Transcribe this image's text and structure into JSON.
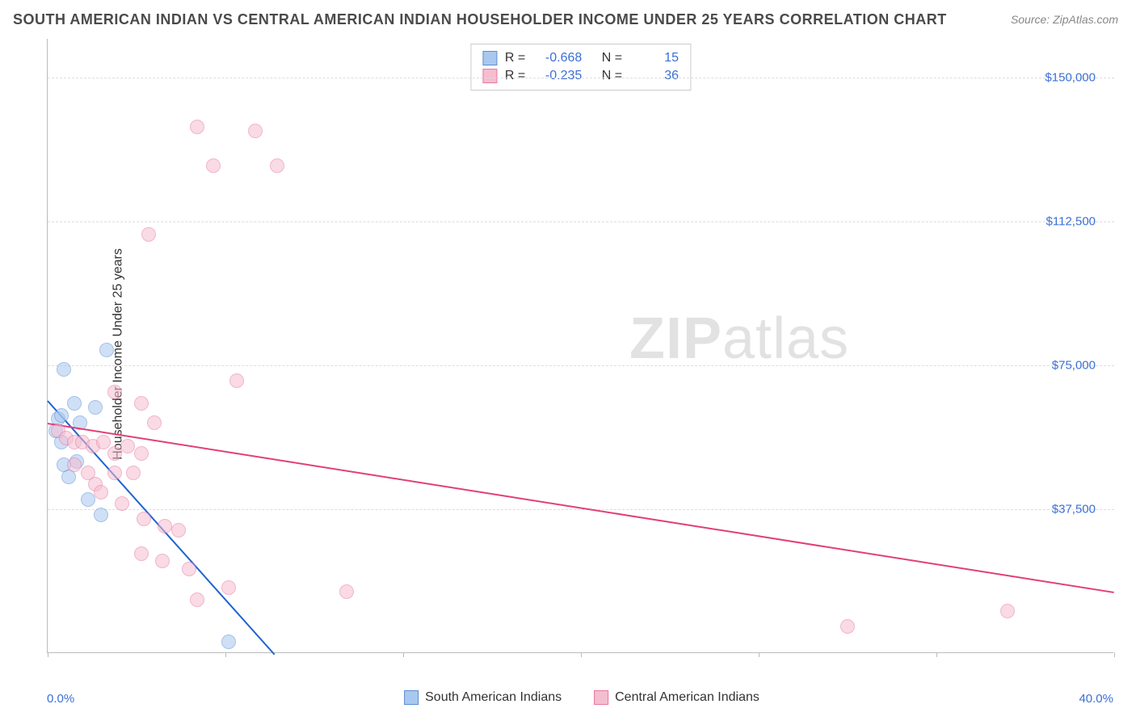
{
  "title": "SOUTH AMERICAN INDIAN VS CENTRAL AMERICAN INDIAN HOUSEHOLDER INCOME UNDER 25 YEARS CORRELATION CHART",
  "source_label": "Source:",
  "source_value": "ZipAtlas.com",
  "y_axis_label": "Householder Income Under 25 years",
  "watermark_zip": "ZIP",
  "watermark_atlas": "atlas",
  "chart": {
    "type": "scatter",
    "background_color": "#ffffff",
    "grid_color": "#dddddd",
    "axis_color": "#bbbbbb",
    "label_color": "#3b6fd6",
    "text_color": "#333333",
    "xlim": [
      0,
      40
    ],
    "ylim": [
      0,
      160000
    ],
    "x_ticks": [
      0,
      6.67,
      13.33,
      20,
      26.67,
      33.33,
      40
    ],
    "x_min_label": "0.0%",
    "x_max_label": "40.0%",
    "y_gridlines": [
      {
        "value": 37500,
        "label": "$37,500"
      },
      {
        "value": 75000,
        "label": "$75,000"
      },
      {
        "value": 112500,
        "label": "$112,500"
      },
      {
        "value": 150000,
        "label": "$150,000"
      }
    ],
    "marker_radius": 9,
    "marker_opacity": 0.55,
    "trend_width": 2,
    "series": [
      {
        "name": "South American Indians",
        "fill": "#a9c8ef",
        "stroke": "#5a8fd6",
        "trend_color": "#1e63d0",
        "R": "-0.668",
        "N": "15",
        "trend": {
          "x1": 0,
          "y1": 66000,
          "x2": 8.5,
          "y2": 0
        },
        "points": [
          {
            "x": 0.4,
            "y": 61000
          },
          {
            "x": 0.5,
            "y": 62000
          },
          {
            "x": 0.3,
            "y": 58000
          },
          {
            "x": 0.6,
            "y": 74000
          },
          {
            "x": 2.2,
            "y": 79000
          },
          {
            "x": 1.0,
            "y": 65000
          },
          {
            "x": 0.5,
            "y": 55000
          },
          {
            "x": 1.1,
            "y": 50000
          },
          {
            "x": 0.6,
            "y": 49000
          },
          {
            "x": 1.5,
            "y": 40000
          },
          {
            "x": 2.0,
            "y": 36000
          },
          {
            "x": 0.8,
            "y": 46000
          },
          {
            "x": 1.2,
            "y": 60000
          },
          {
            "x": 1.8,
            "y": 64000
          },
          {
            "x": 6.8,
            "y": 3000
          }
        ]
      },
      {
        "name": "Central American Indians",
        "fill": "#f5bdd0",
        "stroke": "#e77aa0",
        "trend_color": "#e13f78",
        "R": "-0.235",
        "N": "36",
        "trend": {
          "x1": 0,
          "y1": 60000,
          "x2": 40,
          "y2": 16000
        },
        "points": [
          {
            "x": 5.6,
            "y": 137000
          },
          {
            "x": 7.8,
            "y": 136000
          },
          {
            "x": 6.2,
            "y": 127000
          },
          {
            "x": 8.6,
            "y": 127000
          },
          {
            "x": 3.8,
            "y": 109000
          },
          {
            "x": 7.1,
            "y": 71000
          },
          {
            "x": 2.5,
            "y": 68000
          },
          {
            "x": 3.5,
            "y": 65000
          },
          {
            "x": 0.4,
            "y": 58000
          },
          {
            "x": 0.7,
            "y": 56000
          },
          {
            "x": 1.0,
            "y": 55000
          },
          {
            "x": 1.3,
            "y": 55000
          },
          {
            "x": 1.7,
            "y": 54000
          },
          {
            "x": 2.1,
            "y": 55000
          },
          {
            "x": 2.5,
            "y": 52000
          },
          {
            "x": 3.0,
            "y": 54000
          },
          {
            "x": 3.5,
            "y": 52000
          },
          {
            "x": 1.0,
            "y": 49000
          },
          {
            "x": 1.5,
            "y": 47000
          },
          {
            "x": 2.5,
            "y": 47000
          },
          {
            "x": 1.8,
            "y": 44000
          },
          {
            "x": 3.2,
            "y": 47000
          },
          {
            "x": 2.0,
            "y": 42000
          },
          {
            "x": 2.8,
            "y": 39000
          },
          {
            "x": 3.6,
            "y": 35000
          },
          {
            "x": 4.4,
            "y": 33000
          },
          {
            "x": 4.9,
            "y": 32000
          },
          {
            "x": 3.5,
            "y": 26000
          },
          {
            "x": 4.3,
            "y": 24000
          },
          {
            "x": 5.3,
            "y": 22000
          },
          {
            "x": 6.8,
            "y": 17000
          },
          {
            "x": 5.6,
            "y": 14000
          },
          {
            "x": 11.2,
            "y": 16000
          },
          {
            "x": 30.0,
            "y": 7000
          },
          {
            "x": 36.0,
            "y": 11000
          },
          {
            "x": 4.0,
            "y": 60000
          }
        ]
      }
    ]
  },
  "legend_top": {
    "R_label": "R =",
    "N_label": "N ="
  }
}
